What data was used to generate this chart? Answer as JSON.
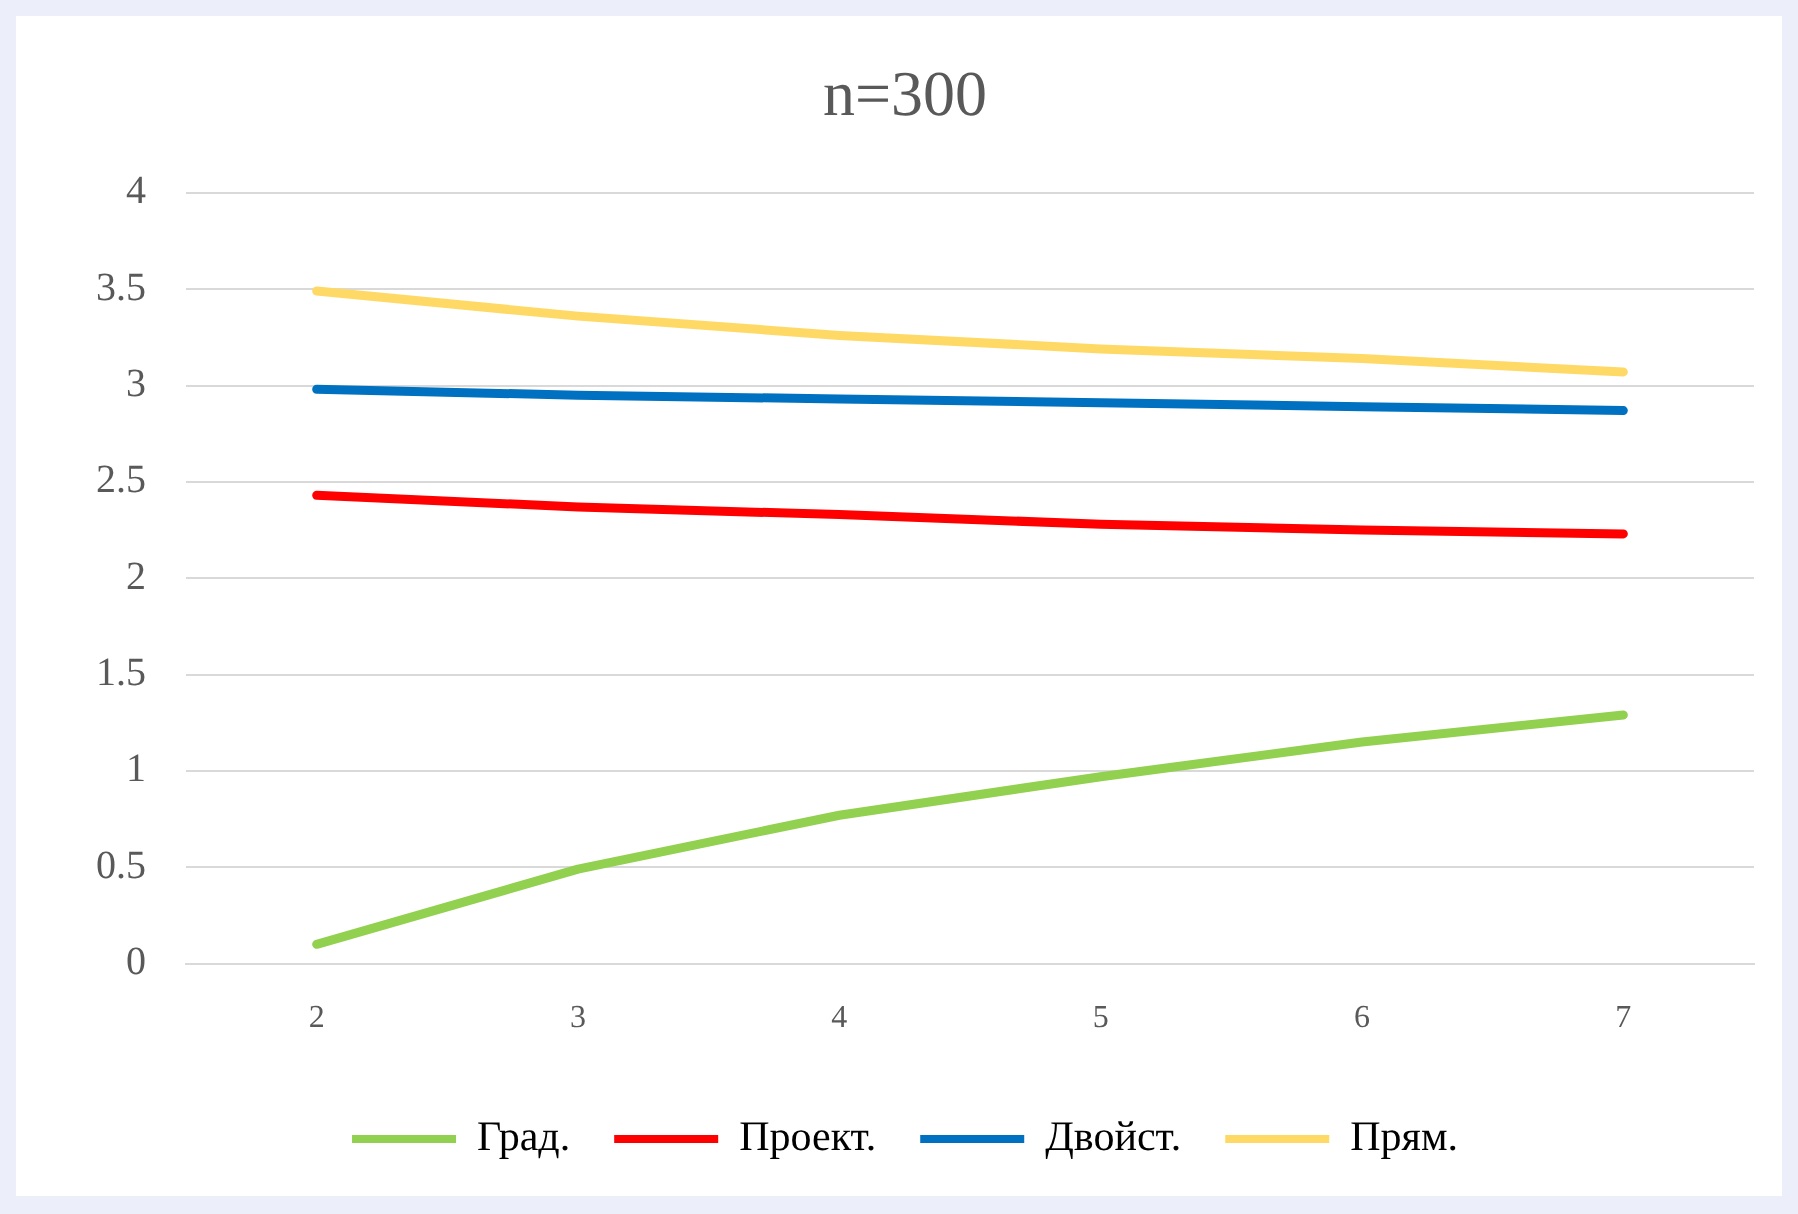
{
  "chart_data": {
    "type": "line",
    "title": "n=300",
    "categories": [
      "2",
      "3",
      "4",
      "5",
      "6",
      "7"
    ],
    "series": [
      {
        "name": "Град.",
        "color": "#92d050",
        "values": [
          0.1,
          0.49,
          0.77,
          0.97,
          1.15,
          1.29
        ]
      },
      {
        "name": "Проект.",
        "color": "#ff0000",
        "values": [
          2.43,
          2.37,
          2.33,
          2.28,
          2.25,
          2.23
        ]
      },
      {
        "name": "Двойст.",
        "color": "#0070c0",
        "values": [
          2.98,
          2.95,
          2.93,
          2.91,
          2.89,
          2.87
        ]
      },
      {
        "name": "Прям.",
        "color": "#ffd966",
        "values": [
          3.49,
          3.36,
          3.26,
          3.19,
          3.14,
          3.07
        ]
      }
    ],
    "ylim": [
      0,
      4
    ],
    "yticks": [
      0,
      0.5,
      1,
      1.5,
      2,
      2.5,
      3,
      3.5,
      4
    ],
    "grid": "y",
    "legend": "bottom",
    "marker": "none",
    "line_style": "solid"
  }
}
